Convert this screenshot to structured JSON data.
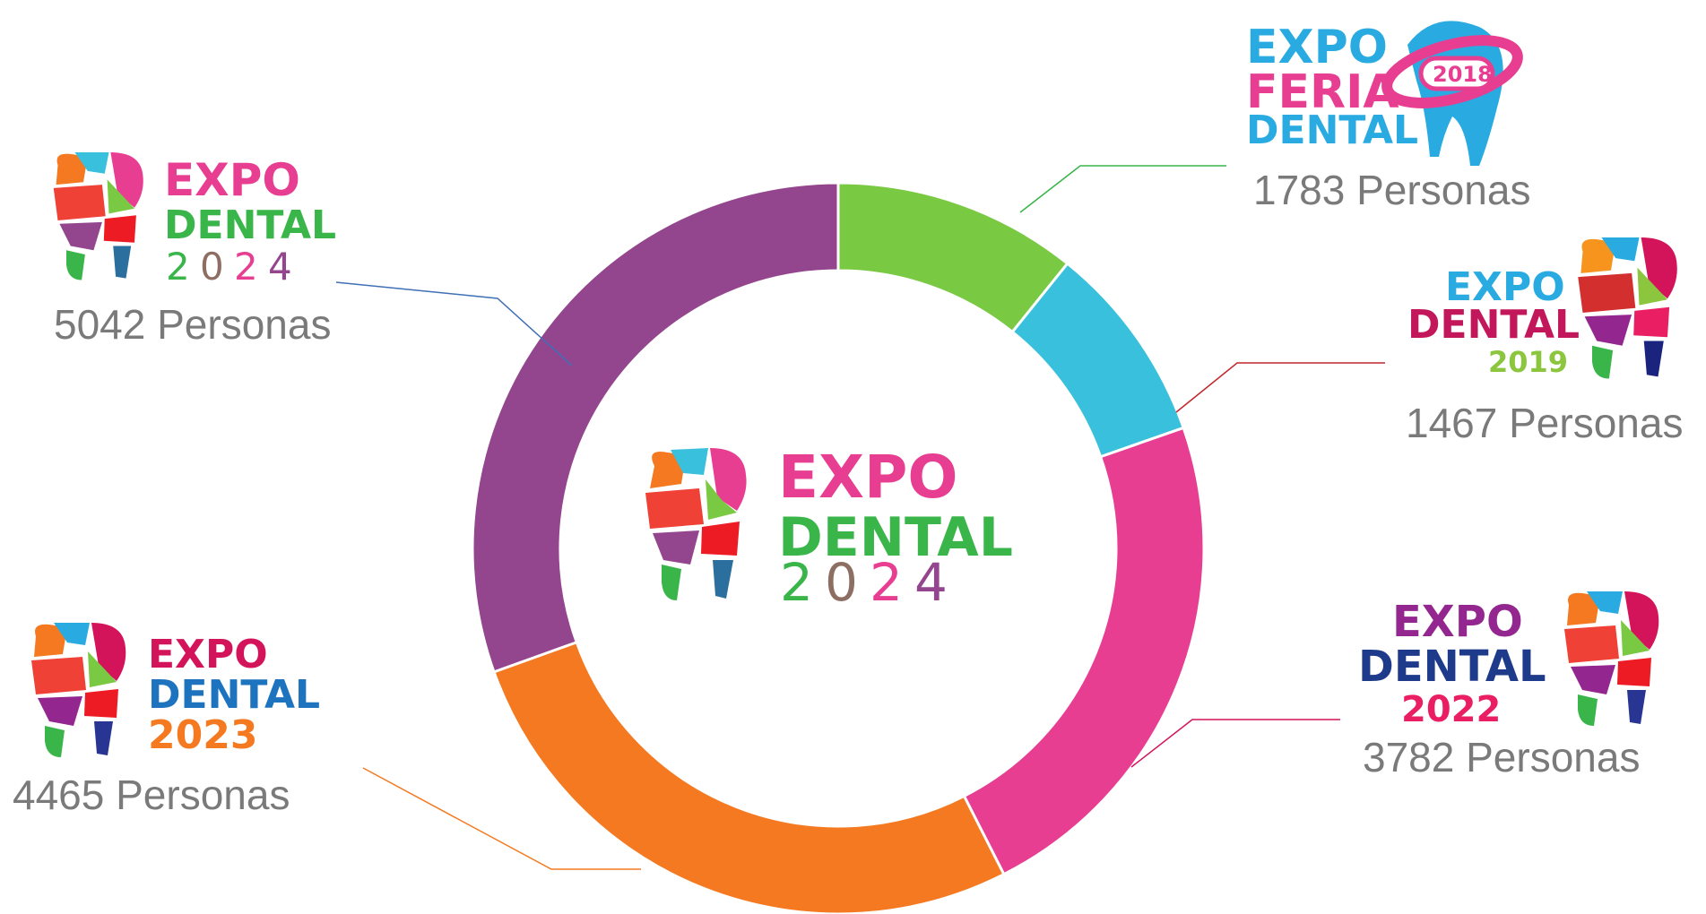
{
  "chart_data": {
    "type": "pie",
    "variant": "donut",
    "unit": "Personas",
    "slices": [
      {
        "label": "EXPO FERIA DENTAL 2018",
        "year": "2018",
        "value": 1783,
        "color": "#7ac943",
        "count_text": "1783 Personas"
      },
      {
        "label": "EXPO DENTAL 2019",
        "year": "2019",
        "value": 1467,
        "color": "#39c0dc",
        "count_text": "1467 Personas"
      },
      {
        "label": "EXPO DENTAL 2022",
        "year": "2022",
        "value": 3782,
        "color": "#e83e92",
        "count_text": "3782 Personas"
      },
      {
        "label": "EXPO DENTAL 2023",
        "year": "2023",
        "value": 4465,
        "color": "#f47920",
        "count_text": "4465 Personas"
      },
      {
        "label": "EXPO DENTAL 2024",
        "year": "2024",
        "value": 5042,
        "color": "#93458e",
        "count_text": "5042 Personas"
      }
    ]
  },
  "center_logo": {
    "line1": "EXPO",
    "line2": "DENTAL",
    "year_digits": [
      "2",
      "0",
      "2",
      "4"
    ]
  },
  "logos": {
    "l2018": {
      "line1": "EXPO",
      "line2": "FERIA",
      "line3": "DENTAL",
      "badge": "2018"
    },
    "l2019": {
      "line1": "EXPO",
      "line2": "DENTAL",
      "year": "2019"
    },
    "l2022": {
      "line1": "EXPO",
      "line2": "DENTAL",
      "year": "2022"
    },
    "l2023": {
      "line1": "EXPO",
      "line2": "DENTAL",
      "year": "2023"
    },
    "l2024": {
      "line1": "EXPO",
      "line2": "DENTAL",
      "year_digits": [
        "2",
        "0",
        "2",
        "4"
      ]
    }
  }
}
